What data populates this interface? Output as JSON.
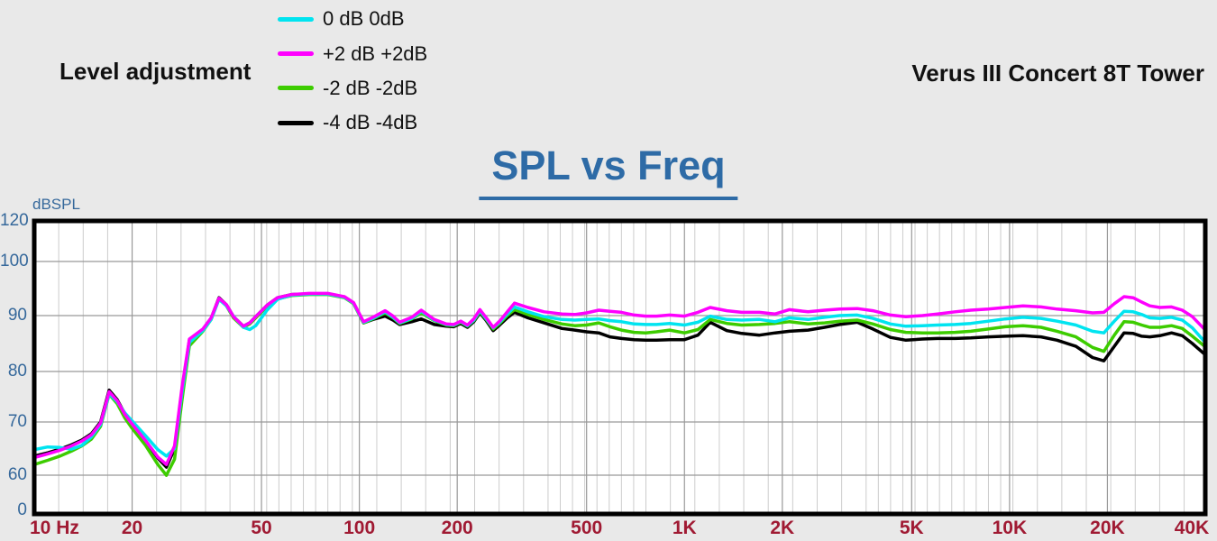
{
  "header": {
    "left_title": "Level adjustment",
    "right_title": "Verus III Concert 8T Tower"
  },
  "legend": {
    "items": [
      {
        "label": "0 dB 0dB",
        "color": "#00e4f0"
      },
      {
        "label": "+2 dB +2dB",
        "color": "#fe00fe"
      },
      {
        "label": "-2 dB -2dB",
        "color": "#3dcc00"
      },
      {
        "label": "-4 dB -4dB",
        "color": "#000000"
      }
    ]
  },
  "chart": {
    "title": "SPL vs Freq",
    "title_color": "#2e6ba6",
    "y_axis_label": "dBSPL",
    "x_tick_labels": [
      "10 Hz",
      "20",
      "50",
      "100",
      "200",
      "500",
      "1K",
      "2K",
      "5K",
      "10K",
      "20K",
      "40K"
    ],
    "x_tick_values": [
      10,
      20,
      50,
      100,
      200,
      500,
      1000,
      2000,
      5000,
      10000,
      20000,
      40000
    ],
    "y_tick_labels": [
      "120",
      "100",
      "90",
      "80",
      "70",
      "60",
      "0"
    ],
    "y_tick_values": [
      120,
      100,
      90,
      80,
      70,
      60,
      0
    ],
    "colors": {
      "x_tick_text": "#a01a33",
      "y_tick_text": "#35689b",
      "major_grid": "#999999",
      "minor_grid": "#cccccc",
      "plot_border": "#000000",
      "plot_background": "#ffffff",
      "page_background": "#e9e9e9"
    }
  },
  "chart_data": {
    "type": "line",
    "title": "SPL vs Freq",
    "xlabel": "Hz",
    "ylabel": "dBSPL",
    "x_scale": "log",
    "xlim": [
      10,
      40000
    ],
    "y_ticks": [
      0,
      60,
      70,
      80,
      90,
      100,
      120
    ],
    "grid": true,
    "legend_position": "top-left-outside",
    "x": [
      10,
      11,
      12,
      13,
      14,
      15,
      16,
      17,
      18,
      19,
      20,
      22,
      24,
      25.5,
      27,
      28.5,
      30,
      33,
      35,
      37,
      39,
      41,
      44,
      46,
      48,
      52,
      56,
      62,
      70,
      80,
      90,
      96,
      103,
      110,
      120,
      127,
      133,
      145,
      155,
      170,
      185,
      195,
      205,
      215,
      225,
      235,
      245,
      258,
      270,
      285,
      300,
      330,
      370,
      420,
      460,
      500,
      545,
      590,
      640,
      700,
      760,
      820,
      900,
      1000,
      1100,
      1200,
      1350,
      1500,
      1700,
      1900,
      2100,
      2400,
      2700,
      3000,
      3400,
      3800,
      4300,
      4800,
      5400,
      6000,
      6800,
      7600,
      8600,
      9700,
      11000,
      12500,
      14000,
      16000,
      18000,
      19500,
      21000,
      22500,
      24000,
      25500,
      27000,
      29000,
      31500,
      34000,
      36500,
      40000
    ],
    "series": [
      {
        "name": "0 dB 0dB",
        "color": "#00e4f0",
        "values": [
          64.8,
          65.3,
          65.2,
          64.9,
          65.6,
          67.2,
          69.5,
          75.6,
          74.0,
          71.8,
          70.2,
          67.4,
          64.8,
          63.6,
          65.0,
          76.0,
          85.2,
          87.3,
          89.3,
          93.0,
          91.8,
          89.9,
          87.9,
          87.5,
          88.2,
          91.0,
          93.0,
          93.8,
          94.0,
          94.0,
          93.4,
          92.3,
          88.8,
          89.5,
          90.7,
          89.7,
          88.7,
          89.5,
          90.8,
          89.2,
          88.4,
          88.3,
          88.9,
          88.2,
          89.2,
          90.9,
          89.5,
          87.8,
          88.8,
          90.3,
          91.6,
          90.7,
          89.8,
          89.3,
          89.2,
          89.3,
          89.4,
          89.1,
          88.9,
          88.5,
          88.4,
          88.4,
          88.6,
          88.3,
          88.8,
          89.9,
          89.3,
          89.2,
          89.3,
          88.9,
          89.6,
          89.3,
          89.7,
          90.0,
          90.1,
          89.5,
          88.5,
          88.1,
          88.2,
          88.3,
          88.4,
          88.6,
          89.0,
          89.4,
          89.7,
          89.5,
          89.0,
          88.3,
          87.2,
          86.9,
          89.0,
          90.8,
          90.7,
          90.2,
          89.6,
          89.5,
          89.7,
          89.2,
          87.8,
          85.2
        ]
      },
      {
        "name": "+2 dB +2dB",
        "color": "#fe00fe",
        "values": [
          63.3,
          64.0,
          64.7,
          65.5,
          66.4,
          67.6,
          69.8,
          76.0,
          74.2,
          71.5,
          69.6,
          66.5,
          63.4,
          62.0,
          65.5,
          77.0,
          85.8,
          87.6,
          89.6,
          93.2,
          92.0,
          89.8,
          88.1,
          88.7,
          89.8,
          91.9,
          93.3,
          93.9,
          94.1,
          94.1,
          93.5,
          92.4,
          88.9,
          89.7,
          90.9,
          89.9,
          88.8,
          89.7,
          91.0,
          89.3,
          88.5,
          88.4,
          89.0,
          88.3,
          89.4,
          91.1,
          89.7,
          87.9,
          89.0,
          90.7,
          92.3,
          91.5,
          90.7,
          90.3,
          90.2,
          90.5,
          91.0,
          90.8,
          90.6,
          90.1,
          89.9,
          89.9,
          90.1,
          89.9,
          90.6,
          91.5,
          90.9,
          90.6,
          90.6,
          90.3,
          91.1,
          90.7,
          91.0,
          91.2,
          91.3,
          90.9,
          90.1,
          89.8,
          90.0,
          90.3,
          90.7,
          91.0,
          91.2,
          91.5,
          91.8,
          91.6,
          91.2,
          90.9,
          90.5,
          90.6,
          92.2,
          93.5,
          93.3,
          92.5,
          91.8,
          91.5,
          91.6,
          91.0,
          89.8,
          87.4
        ]
      },
      {
        "name": "-2 dB -2dB",
        "color": "#3dcc00",
        "values": [
          62.0,
          62.8,
          63.6,
          64.5,
          65.5,
          66.8,
          69.2,
          75.5,
          73.6,
          70.8,
          68.8,
          65.6,
          62.0,
          59.8,
          63.0,
          74.5,
          84.6,
          87.2,
          89.3,
          93.1,
          91.8,
          89.6,
          87.9,
          88.5,
          89.6,
          91.7,
          93.1,
          93.7,
          93.9,
          93.9,
          93.3,
          92.2,
          88.7,
          89.4,
          90.5,
          89.6,
          88.6,
          89.4,
          90.5,
          89.1,
          88.3,
          88.2,
          88.8,
          88.1,
          89.1,
          90.7,
          89.4,
          87.6,
          88.6,
          90.0,
          91.1,
          90.2,
          89.3,
          88.5,
          88.2,
          88.3,
          88.7,
          88.0,
          87.4,
          87.0,
          86.9,
          87.1,
          87.4,
          86.9,
          87.5,
          89.3,
          88.6,
          88.3,
          88.4,
          88.6,
          88.9,
          88.5,
          88.7,
          89.0,
          89.2,
          88.5,
          87.5,
          87.0,
          86.9,
          86.9,
          87.0,
          87.2,
          87.6,
          88.0,
          88.2,
          87.9,
          87.2,
          86.2,
          84.3,
          83.6,
          86.5,
          88.9,
          88.8,
          88.3,
          87.9,
          87.9,
          88.2,
          87.7,
          86.3,
          84.4
        ]
      },
      {
        "name": "-4 dB -4dB",
        "color": "#000000",
        "values": [
          63.6,
          64.2,
          64.9,
          65.7,
          66.6,
          67.8,
          70.0,
          76.3,
          74.4,
          71.6,
          69.6,
          66.4,
          63.2,
          61.5,
          65.0,
          76.5,
          85.6,
          87.5,
          89.5,
          93.3,
          92.0,
          89.8,
          88.1,
          88.7,
          89.8,
          91.9,
          93.3,
          93.9,
          94.0,
          94.0,
          93.4,
          92.3,
          88.7,
          89.3,
          89.9,
          89.2,
          88.4,
          88.9,
          89.4,
          88.4,
          88.1,
          88.0,
          88.6,
          87.9,
          88.9,
          90.5,
          89.2,
          87.3,
          88.3,
          89.6,
          90.6,
          89.6,
          88.7,
          87.7,
          87.4,
          87.1,
          86.9,
          86.2,
          85.9,
          85.7,
          85.6,
          85.6,
          85.7,
          85.7,
          86.5,
          88.8,
          87.3,
          86.8,
          86.5,
          86.9,
          87.2,
          87.4,
          87.9,
          88.4,
          88.8,
          87.6,
          86.1,
          85.6,
          85.8,
          85.9,
          85.9,
          86.0,
          86.2,
          86.3,
          86.4,
          86.2,
          85.6,
          84.5,
          82.5,
          81.9,
          84.5,
          86.9,
          86.8,
          86.3,
          86.2,
          86.4,
          86.9,
          86.4,
          85.0,
          83.0
        ]
      }
    ]
  }
}
